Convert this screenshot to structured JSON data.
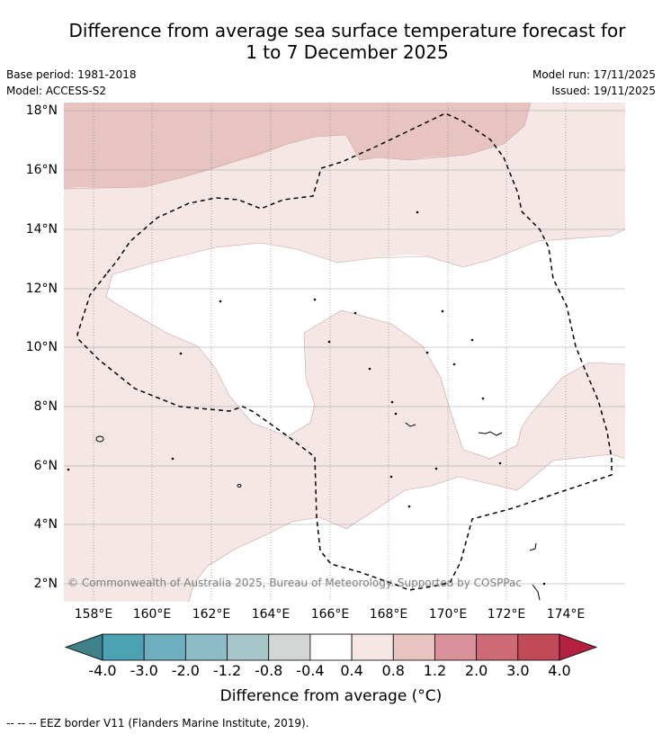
{
  "title": {
    "line1": "Difference from average sea surface temperature forecast for",
    "line2": "1 to 7 December 2025"
  },
  "meta": {
    "base_period": "Base period: 1981-2018",
    "model": "Model: ACCESS-S2",
    "model_run": "Model run: 17/11/2025",
    "issued": "Issued: 19/11/2025"
  },
  "map": {
    "lat_labels": [
      "18°N",
      "16°N",
      "14°N",
      "12°N",
      "10°N",
      "8°N",
      "6°N",
      "4°N",
      "2°N"
    ],
    "lon_labels": [
      "158°E",
      "160°E",
      "162°E",
      "164°E",
      "166°E",
      "168°E",
      "170°E",
      "172°E",
      "174°E"
    ],
    "lat_range": [
      1.4,
      18.3
    ],
    "lon_range": [
      157.0,
      176.0
    ],
    "shown_anomaly_bands": [
      "0.4 to 0.8",
      "0.8 to 1.2"
    ]
  },
  "copyright": "© Commonwealth of Australia 2025, Bureau of Meteorology. Supported by COSPPac",
  "colorbar": {
    "title": "Difference from average (°C)",
    "labels": [
      "-4.0",
      "-3.0",
      "-2.0",
      "-1.2",
      "-0.8",
      "-0.4",
      "0.4",
      "0.8",
      "1.2",
      "2.0",
      "3.0",
      "4.0"
    ],
    "low_extend_color": "#3f8089",
    "high_extend_color": "#b5203f",
    "colors": [
      "#4aa2b2",
      "#6daebf",
      "#8ebcc6",
      "#a7c6ca",
      "#d4d6d6",
      "#ffffff",
      "#f5e7e6",
      "#e8c4c0",
      "#d9929a",
      "#cc6b76",
      "#c14a59"
    ]
  },
  "footnote": "-- -- -- EEZ border V11 (Flanders Marine Institute, 2019)."
}
